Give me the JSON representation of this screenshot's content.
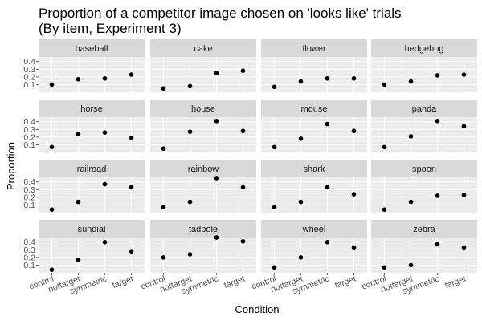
{
  "chart_data": {
    "type": "scatter",
    "title": [
      "Proportion of a competitor image chosen on 'looks like' trials",
      "(By item, Experiment 3)"
    ],
    "xlabel": "Condition",
    "ylabel": "Proportion",
    "categories": [
      "control",
      "nottarget",
      "symmetric",
      "target"
    ],
    "y_ticks": [
      0.1,
      0.2,
      0.3,
      0.4
    ],
    "y_tick_labels": [
      "0.1",
      "0.2",
      "0.3",
      "0.4"
    ],
    "ylim": [
      0.0,
      0.46
    ],
    "grid": true,
    "facet_layout": "4x4",
    "facets": [
      {
        "name": "baseball",
        "values": [
          0.1,
          0.17,
          0.18,
          0.23
        ]
      },
      {
        "name": "cake",
        "values": [
          0.05,
          0.08,
          0.25,
          0.28
        ]
      },
      {
        "name": "flower",
        "values": [
          0.07,
          0.14,
          0.18,
          0.18
        ]
      },
      {
        "name": "hedgehog",
        "values": [
          0.1,
          0.14,
          0.22,
          0.23
        ]
      },
      {
        "name": "horse",
        "values": [
          0.07,
          0.24,
          0.26,
          0.19
        ]
      },
      {
        "name": "house",
        "values": [
          0.05,
          0.27,
          0.41,
          0.28
        ]
      },
      {
        "name": "mouse",
        "values": [
          0.07,
          0.18,
          0.37,
          0.28
        ]
      },
      {
        "name": "panda",
        "values": [
          0.07,
          0.21,
          0.41,
          0.34
        ]
      },
      {
        "name": "railroad",
        "values": [
          0.04,
          0.14,
          0.37,
          0.33
        ]
      },
      {
        "name": "rainbow",
        "values": [
          0.07,
          0.14,
          0.45,
          0.33
        ]
      },
      {
        "name": "shark",
        "values": [
          0.07,
          0.14,
          0.33,
          0.24
        ]
      },
      {
        "name": "spoon",
        "values": [
          0.04,
          0.14,
          0.22,
          0.23
        ]
      },
      {
        "name": "sundial",
        "values": [
          0.04,
          0.17,
          0.4,
          0.28
        ]
      },
      {
        "name": "tadpole",
        "values": [
          0.2,
          0.24,
          0.46,
          0.41
        ]
      },
      {
        "name": "wheel",
        "values": [
          0.07,
          0.2,
          0.4,
          0.33
        ]
      },
      {
        "name": "zebra",
        "values": [
          0.07,
          0.1,
          0.37,
          0.33
        ]
      }
    ],
    "colors": {
      "panel_background": "#ebebeb",
      "strip_background": "#d9d9d9",
      "major_grid": "#ffffff",
      "minor_grid": "#f5f5f5",
      "point": "#000000"
    }
  }
}
